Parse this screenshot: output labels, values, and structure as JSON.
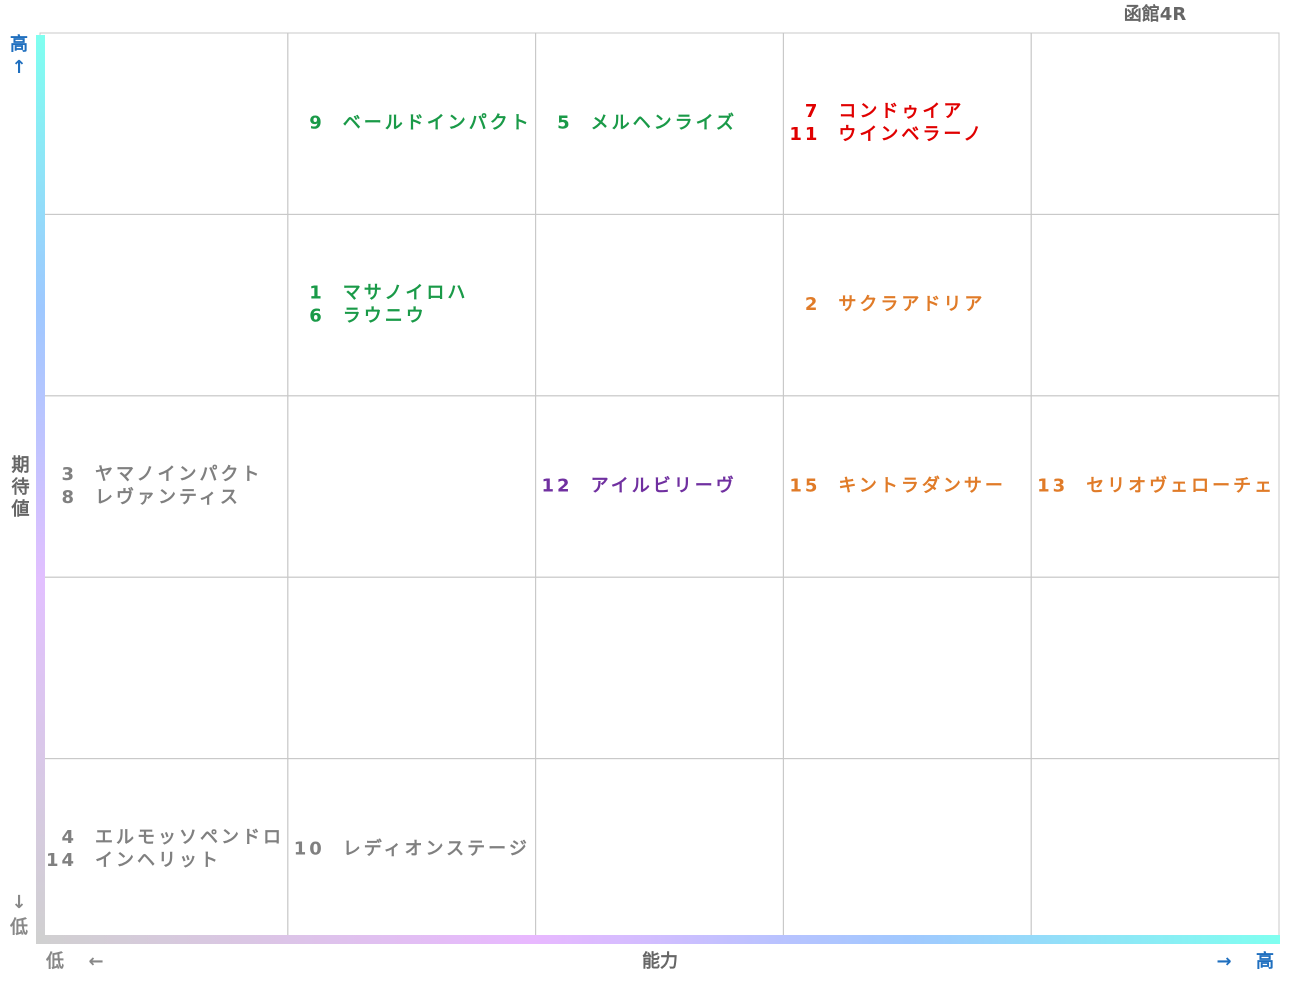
{
  "title": "函館4R",
  "y_axis": {
    "high": "高",
    "high_arrow": "↑",
    "label": "期待値",
    "low_arrow": "↓",
    "low": "低"
  },
  "x_axis": {
    "low": "低",
    "low_arrow": "←",
    "label": "能力",
    "high_arrow": "→",
    "high": "高"
  },
  "grid": {
    "rows": [
      [
        [],
        [
          {
            "number": "9",
            "name": "ベールドインパクト",
            "color": "#1a9a48"
          }
        ],
        [
          {
            "number": "5",
            "name": "メルヘンライズ",
            "color": "#1a9a48"
          }
        ],
        [
          {
            "number": "7",
            "name": "コンドゥイア",
            "color": "#e00000"
          },
          {
            "number": "11",
            "name": "ウインベラーノ",
            "color": "#e00000"
          }
        ],
        []
      ],
      [
        [],
        [
          {
            "number": "1",
            "name": "マサノイロハ",
            "color": "#1a9a48"
          },
          {
            "number": "6",
            "name": "ラウニウ",
            "color": "#1a9a48"
          }
        ],
        [],
        [
          {
            "number": "2",
            "name": "サクラアドリア",
            "color": "#e07b28"
          }
        ],
        []
      ],
      [
        [
          {
            "number": "3",
            "name": "ヤマノインパクト",
            "color": "#808080"
          },
          {
            "number": "8",
            "name": "レヴァンティス",
            "color": "#808080"
          }
        ],
        [],
        [
          {
            "number": "12",
            "name": "アイルビリーヴ",
            "color": "#7030a0"
          }
        ],
        [
          {
            "number": "15",
            "name": "キントラダンサー",
            "color": "#e07b28"
          }
        ],
        [
          {
            "number": "13",
            "name": "セリオヴェローチェ",
            "color": "#e07b28"
          }
        ]
      ],
      [
        [],
        [],
        [],
        [],
        []
      ],
      [
        [
          {
            "number": "4",
            "name": "エルモッソペンドロ",
            "color": "#808080"
          },
          {
            "number": "14",
            "name": "インヘリット",
            "color": "#808080"
          }
        ],
        [
          {
            "number": "10",
            "name": "レディオンステージ",
            "color": "#808080"
          }
        ],
        [],
        [],
        []
      ]
    ]
  }
}
